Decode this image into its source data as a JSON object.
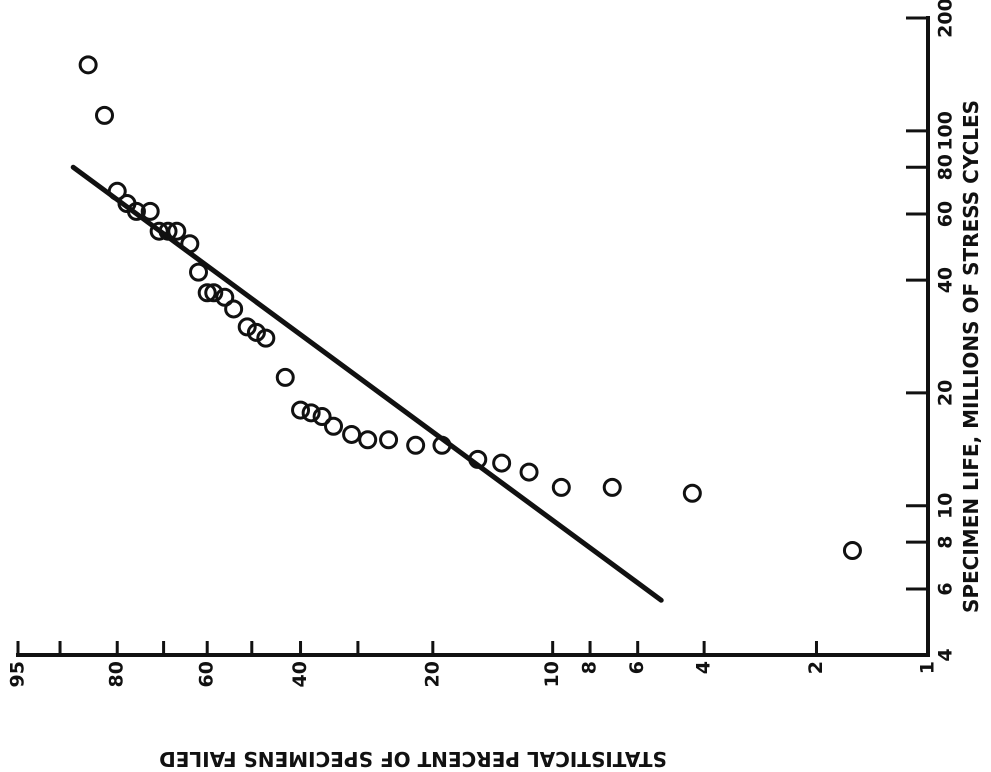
{
  "chart_data": {
    "type": "scatter",
    "orientation": "rotated-90",
    "xlabel": "STATISTICAL PERCENT OF SPECIMENS FAILED",
    "ylabel": "SPECIMEN LIFE, MILLIONS OF STRESS CYCLES",
    "x_scale": "weibull-probability",
    "y_scale": "log",
    "xlim": [
      1,
      95
    ],
    "ylim": [
      4,
      200
    ],
    "x_ticks": [
      {
        "value": 95,
        "label": "95"
      },
      {
        "value": 90,
        "label": ""
      },
      {
        "value": 80,
        "label": "80"
      },
      {
        "value": 70,
        "label": ""
      },
      {
        "value": 60,
        "label": "60"
      },
      {
        "value": 50,
        "label": ""
      },
      {
        "value": 40,
        "label": "40"
      },
      {
        "value": 30,
        "label": ""
      },
      {
        "value": 20,
        "label": "20"
      },
      {
        "value": 10,
        "label": "10"
      },
      {
        "value": 8,
        "label": "8"
      },
      {
        "value": 6,
        "label": "6"
      },
      {
        "value": 4,
        "label": "4"
      },
      {
        "value": 2,
        "label": "2"
      },
      {
        "value": 1,
        "label": "1"
      }
    ],
    "y_ticks": [
      {
        "value": 4,
        "label": "4"
      },
      {
        "value": 6,
        "label": "6"
      },
      {
        "value": 8,
        "label": "8"
      },
      {
        "value": 10,
        "label": "10"
      },
      {
        "value": 20,
        "label": "20"
      },
      {
        "value": 40,
        "label": "40"
      },
      {
        "value": 60,
        "label": "60"
      },
      {
        "value": 80,
        "label": "80"
      },
      {
        "value": 100,
        "label": "100"
      },
      {
        "value": 200,
        "label": "200"
      }
    ],
    "points": [
      {
        "x": 85.5,
        "y": 150
      },
      {
        "x": 82.5,
        "y": 110
      },
      {
        "x": 80,
        "y": 69
      },
      {
        "x": 78,
        "y": 64
      },
      {
        "x": 76,
        "y": 61
      },
      {
        "x": 73,
        "y": 61
      },
      {
        "x": 71,
        "y": 54
      },
      {
        "x": 69,
        "y": 54
      },
      {
        "x": 67,
        "y": 54
      },
      {
        "x": 64,
        "y": 50
      },
      {
        "x": 62,
        "y": 42
      },
      {
        "x": 60,
        "y": 37
      },
      {
        "x": 58.5,
        "y": 37
      },
      {
        "x": 56,
        "y": 36
      },
      {
        "x": 54,
        "y": 33.5
      },
      {
        "x": 51,
        "y": 30
      },
      {
        "x": 49,
        "y": 29
      },
      {
        "x": 47,
        "y": 28
      },
      {
        "x": 43,
        "y": 22
      },
      {
        "x": 40,
        "y": 18
      },
      {
        "x": 38,
        "y": 17.7
      },
      {
        "x": 36,
        "y": 17.3
      },
      {
        "x": 34,
        "y": 16.3
      },
      {
        "x": 31,
        "y": 15.5
      },
      {
        "x": 28.5,
        "y": 15
      },
      {
        "x": 25.5,
        "y": 15
      },
      {
        "x": 22,
        "y": 14.5
      },
      {
        "x": 19,
        "y": 14.5
      },
      {
        "x": 15.5,
        "y": 13.3
      },
      {
        "x": 13.5,
        "y": 13
      },
      {
        "x": 11.5,
        "y": 12.3
      },
      {
        "x": 9.5,
        "y": 11.2
      },
      {
        "x": 7,
        "y": 11.2
      },
      {
        "x": 4.3,
        "y": 10.8
      },
      {
        "x": 1.6,
        "y": 7.6
      }
    ],
    "fit_line": [
      {
        "x": 88,
        "y": 80
      },
      {
        "x": 5.2,
        "y": 5.6
      }
    ],
    "grid": false,
    "legend": "none"
  }
}
